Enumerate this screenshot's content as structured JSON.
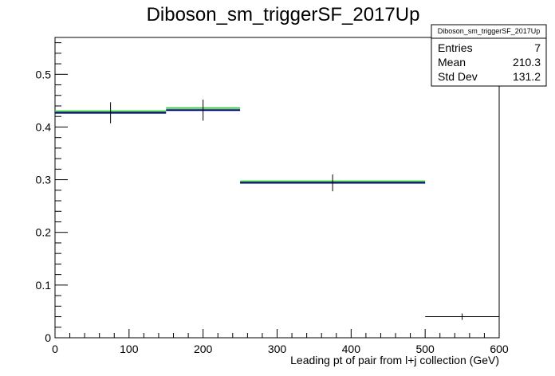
{
  "chart_data": {
    "type": "histogram",
    "title": "Diboson_sm_triggerSF_2017Up",
    "xlabel": "Leading pt of pair from l+j collection (GeV)",
    "ylabel": "",
    "xlim": [
      0,
      600
    ],
    "ylim": [
      0,
      0.57
    ],
    "xticks": [
      0,
      100,
      200,
      300,
      400,
      500,
      600
    ],
    "yticks": [
      0,
      0.1,
      0.2,
      0.3,
      0.4,
      0.5
    ],
    "bins": [
      {
        "low": 0,
        "high": 150,
        "value": 0.427,
        "green": 0.43,
        "error": 0.02
      },
      {
        "low": 150,
        "high": 250,
        "value": 0.432,
        "green": 0.436,
        "error": 0.02
      },
      {
        "low": 250,
        "high": 500,
        "value": 0.294,
        "green": 0.297,
        "error": 0.016
      },
      {
        "low": 500,
        "high": 600,
        "value": 0.04,
        "green": null,
        "error": 0.006
      }
    ],
    "colors": {
      "main": "#000080",
      "green": "#33cc33",
      "black": "#000000"
    },
    "stats": {
      "title": "Diboson_sm_triggerSF_2017Up",
      "rows": [
        {
          "label": "Entries",
          "value": "7"
        },
        {
          "label": "Mean",
          "value": "210.3"
        },
        {
          "label": "Std Dev",
          "value": "131.2"
        }
      ]
    }
  }
}
